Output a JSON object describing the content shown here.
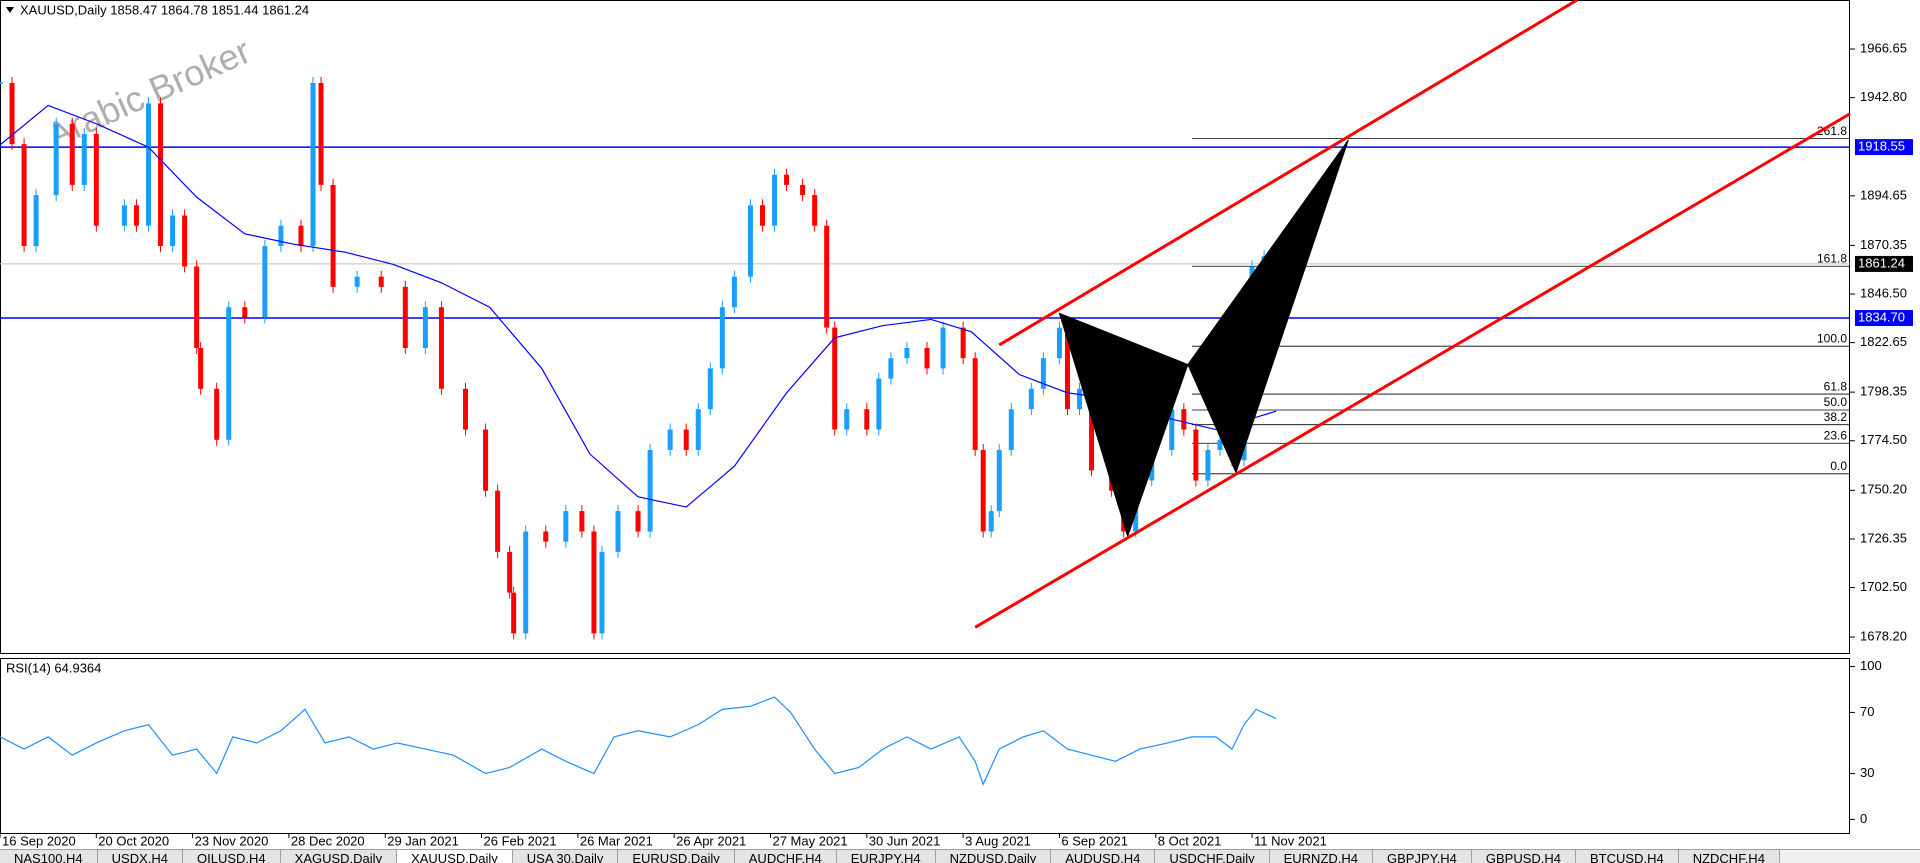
{
  "chart_data": [
    {
      "type": "candlestick",
      "title": "XAUUSD,Daily 1858.47 1864.78 1851.44 1861.24",
      "watermark": "Arabic Broker",
      "x": [
        0,
        3,
        6,
        9,
        14,
        18,
        21,
        24,
        31,
        34,
        37,
        40,
        43,
        46,
        49,
        50,
        54,
        57,
        61,
        66,
        70,
        75,
        78,
        80,
        83,
        89,
        95,
        101,
        106,
        110,
        116,
        121,
        124,
        127,
        128,
        131,
        136,
        141,
        145,
        148,
        150,
        154,
        159,
        162,
        167,
        171,
        174,
        177,
        180,
        183,
        187,
        190,
        193,
        196,
        200,
        203,
        206,
        208,
        211,
        216,
        219,
        222,
        226,
        231,
        235,
        240,
        243,
        245,
        247,
        249,
        252,
        257,
        260,
        264,
        266,
        269,
        272,
        277,
        280,
        283,
        287,
        292,
        295,
        298,
        301,
        304,
        307,
        310,
        312,
        315,
        318
      ],
      "close": [
        1950,
        1920,
        1870,
        1895,
        1930,
        1900,
        1925,
        1880,
        1890,
        1880,
        1940,
        1870,
        1885,
        1860,
        1820,
        1800,
        1775,
        1840,
        1835,
        1870,
        1880,
        1870,
        1950,
        1900,
        1850,
        1855,
        1850,
        1820,
        1840,
        1800,
        1780,
        1750,
        1720,
        1700,
        1680,
        1730,
        1725,
        1740,
        1730,
        1680,
        1720,
        1740,
        1730,
        1770,
        1780,
        1770,
        1790,
        1810,
        1840,
        1855,
        1890,
        1880,
        1905,
        1900,
        1895,
        1880,
        1830,
        1780,
        1790,
        1780,
        1805,
        1815,
        1820,
        1810,
        1830,
        1815,
        1770,
        1730,
        1740,
        1770,
        1790,
        1800,
        1815,
        1830,
        1790,
        1800,
        1760,
        1750,
        1730,
        1755,
        1770,
        1790,
        1780,
        1755,
        1770,
        1775,
        1765,
        1795,
        1860,
        1865,
        1861.24
      ],
      "bull_color": "#1a9fff",
      "bear_color": "#ff0000",
      "ma": {
        "color": "#0000ff",
        "x": [
          0,
          12,
          24,
          37,
          49,
          61,
          73,
          86,
          98,
          110,
          122,
          135,
          147,
          159,
          171,
          183,
          196,
          208,
          220,
          232,
          242,
          254,
          266,
          278,
          290,
          303,
          318
        ],
        "values": [
          1919.6,
          1939,
          1930,
          1918.5,
          1894,
          1876,
          1871,
          1867,
          1861,
          1852,
          1840,
          1810,
          1768,
          1747,
          1742,
          1762,
          1798,
          1825,
          1831,
          1834,
          1828,
          1807,
          1798,
          1795,
          1786,
          1780,
          1789
        ]
      },
      "xlim": [
        0,
        461
      ],
      "ylim": [
        1670.4,
        1990.7
      ],
      "yticks": [
        1966.65,
        {
          "value": 1942.8,
          "label": "1942.80"
        },
        1894.65,
        1870.35,
        {
          "value": 1846.5,
          "label": "1846.50"
        },
        1822.65,
        1798.35,
        {
          "value": 1774.5,
          "label": "1774.50"
        },
        {
          "value": 1750.2,
          "label": "1750.20"
        },
        1726.35,
        {
          "value": 1702.5,
          "label": "1702.50"
        },
        {
          "value": 1678.2,
          "label": "1678.20"
        }
      ],
      "xticks": [
        {
          "value": 0,
          "label": "16 Sep 2020"
        },
        {
          "value": 24,
          "label": "20 Oct 2020"
        },
        {
          "value": 48,
          "label": "23 Nov 2020"
        },
        {
          "value": 72,
          "label": "28 Dec 2020"
        },
        {
          "value": 96,
          "label": "29 Jan 2021"
        },
        {
          "value": 120,
          "label": "26 Feb 2021"
        },
        {
          "value": 144,
          "label": "26 Mar 2021"
        },
        {
          "value": 168,
          "label": "26 Apr 2021"
        },
        {
          "value": 192,
          "label": "27 May 2021"
        },
        {
          "value": 216,
          "label": "30 Jun 2021"
        },
        {
          "value": 240,
          "label": "3 Aug 2021"
        },
        {
          "value": 264,
          "label": "6 Sep 2021"
        },
        {
          "value": 288,
          "label": "8 Oct 2021"
        },
        {
          "value": 312,
          "label": "11 Nov 2021"
        }
      ],
      "price_lines": [
        {
          "price": 1918.55,
          "label": "1918.55",
          "color": "#0000ff",
          "box": "#0000ff"
        },
        {
          "price": 1834.7,
          "label": "1834.70",
          "color": "#0000ff",
          "box": "#0000ff"
        },
        {
          "price": 1861.24,
          "label": "1861.24",
          "color": "#c0c0c0",
          "box": "#000000"
        }
      ],
      "trendlines": [
        {
          "x": [
            249,
            393
          ],
          "y": [
            1821.5,
            1990.7
          ],
          "color": "#ff0000"
        },
        {
          "x": [
            243,
            461
          ],
          "y": [
            1683.0,
            1934.9
          ],
          "color": "#ff0000"
        }
      ],
      "pattern": {
        "color": "#000000",
        "triangles": [
          {
            "x": [
              264,
              281,
              296
            ],
            "y": [
              1837,
              1727.6,
              1811.9
            ]
          },
          {
            "x": [
              296,
              308,
              336
            ],
            "y": [
              1811.9,
              1758.9,
              1922.1
            ]
          }
        ]
      },
      "fib_start": 297,
      "fib_levels": [
        {
          "label": "0.0",
          "price": 1758.3
        },
        {
          "label": "23.6",
          "price": 1773.3
        },
        {
          "label": "38.2",
          "price": 1782.4
        },
        {
          "label": "50.0",
          "price": 1789.6
        },
        {
          "label": "61.8",
          "price": 1797.4
        },
        {
          "label": "100.0",
          "price": 1820.9
        },
        {
          "label": "161.8",
          "price": 1860.1
        },
        {
          "label": "261.8",
          "price": 1922.7
        }
      ]
    },
    {
      "type": "line",
      "title": "RSI(14) 64.9364",
      "color": "#1e90ff",
      "x": [
        0,
        6,
        12,
        18,
        24,
        31,
        37,
        43,
        49,
        54,
        58,
        64,
        70,
        76,
        81,
        87,
        93,
        99,
        106,
        113,
        121,
        127,
        135,
        141,
        148,
        153,
        159,
        167,
        174,
        180,
        187,
        193,
        197,
        203,
        208,
        214,
        220,
        226,
        232,
        239,
        243,
        245,
        249,
        255,
        260,
        266,
        272,
        278,
        284,
        291,
        297,
        303,
        307,
        310,
        313,
        318
      ],
      "values": [
        54,
        46,
        54,
        42,
        50,
        58,
        62,
        42,
        46,
        30,
        54,
        50,
        58,
        72,
        50,
        54,
        46,
        50,
        46,
        42,
        30,
        34,
        46,
        38,
        30,
        54,
        58,
        54,
        62,
        72,
        74,
        80,
        70,
        46,
        30,
        34,
        46,
        54,
        46,
        54,
        38,
        23,
        46,
        54,
        58,
        46,
        42,
        38,
        46,
        50,
        54,
        54,
        46,
        62,
        72,
        66
      ],
      "ylim": [
        -8.9,
        105.6
      ],
      "yticks": [
        100,
        70,
        30,
        0
      ]
    }
  ],
  "tabs": [
    "NAS100,H4",
    "USDX,H4",
    "OILUSD,H4",
    "XAGUSD,Daily",
    "XAUUSD,Daily",
    "USA 30,Daily",
    "EURUSD,Daily",
    "AUDCHF,H4",
    "EURJPY,H4",
    "NZDUSD,Daily",
    "AUDUSD,H4",
    "USDCHF,Daily",
    "EURNZD,H4",
    "GBPJPY,H4",
    "GBPUSD,H4",
    "BTCUSD,H4",
    "NZDCHF,H4"
  ],
  "active_tab": 4
}
